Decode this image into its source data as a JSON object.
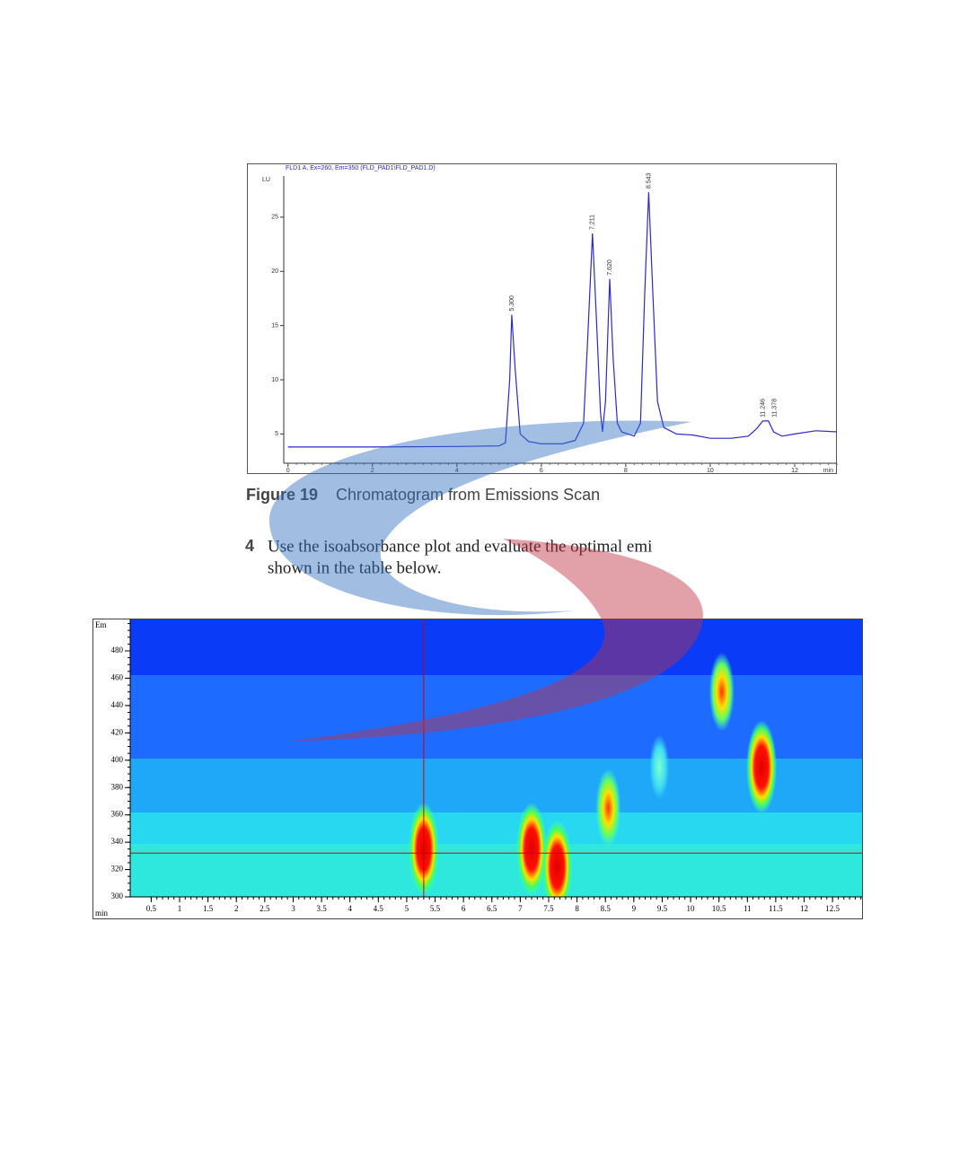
{
  "chart_data": [
    {
      "type": "line",
      "title": "FLD1 A, Ex=260, Em=350 (FLD_PAD1\\FLD_PAD1.D)",
      "y_label": "LU",
      "x_label": "min",
      "color": "#2a2ad0",
      "x": [
        0,
        2,
        4,
        5,
        5.15,
        5.25,
        5.3,
        5.38,
        5.5,
        5.7,
        6,
        6.5,
        6.8,
        7.0,
        7.1,
        7.211,
        7.3,
        7.4,
        7.45,
        7.52,
        7.62,
        7.7,
        7.8,
        7.9,
        8.2,
        8.35,
        8.45,
        8.543,
        8.62,
        8.75,
        8.9,
        9.2,
        9.6,
        10.0,
        10.5,
        10.9,
        11.1,
        11.246,
        11.378,
        11.5,
        11.7,
        12,
        12.5,
        13
      ],
      "values": [
        3.8,
        3.8,
        3.85,
        3.9,
        4.2,
        10,
        16,
        11,
        5,
        4.3,
        4.1,
        4.1,
        4.4,
        6,
        14,
        23.5,
        16,
        7,
        5.2,
        8,
        19.3,
        12,
        6,
        5.2,
        4.8,
        6,
        18,
        27.3,
        20,
        8,
        5.6,
        5,
        4.9,
        4.6,
        4.6,
        4.8,
        5.5,
        6.2,
        6.2,
        5.2,
        4.8,
        5,
        5.3,
        5.2
      ],
      "peak_x": [
        5.3,
        7.211,
        7.62,
        8.543,
        11.246,
        11.378
      ],
      "peak_labels": [
        "5.300",
        "7.211",
        "7.620",
        "8.543",
        "11.246",
        "11.378"
      ],
      "peak_y": [
        16,
        23.5,
        19.3,
        27.3,
        6.2,
        6.2
      ],
      "xlim": [
        -0.1,
        13.0
      ],
      "ylim": [
        2.3,
        28.8
      ],
      "xticks": [
        0,
        2,
        4,
        6,
        8,
        10,
        12
      ],
      "yticks": [
        5,
        10,
        15,
        20,
        25
      ]
    },
    {
      "type": "heatmap",
      "y_label": "Em",
      "x_label": "min",
      "spots": {
        "x": [
          5.3,
          7.2,
          7.65,
          8.55,
          9.45,
          10.55,
          11.25
        ],
        "y": [
          335,
          335,
          322,
          365,
          395,
          450,
          395
        ],
        "intensity": [
          3,
          3,
          3,
          2,
          1,
          2,
          3
        ]
      },
      "cursor": {
        "x": 5.3,
        "y": 332
      },
      "xlim": [
        0.13,
        13.02
      ],
      "ylim": [
        300,
        503
      ],
      "xticks": [
        0.5,
        1,
        1.5,
        2,
        2.5,
        3,
        3.5,
        4,
        4.5,
        5,
        5.5,
        6,
        6.5,
        7,
        7.5,
        8,
        8.5,
        9,
        9.5,
        10,
        10.5,
        11,
        11.5,
        12,
        12.5
      ],
      "yticks": [
        300,
        320,
        340,
        360,
        380,
        400,
        420,
        440,
        460,
        480
      ]
    }
  ],
  "caption": {
    "number": "Figure 19",
    "text": "Chromatogram from Emissions Scan"
  },
  "step": {
    "number": "4",
    "lines": [
      "Use the isoabsorbance plot and evaluate the optimal emi",
      "shown in the table below."
    ]
  }
}
